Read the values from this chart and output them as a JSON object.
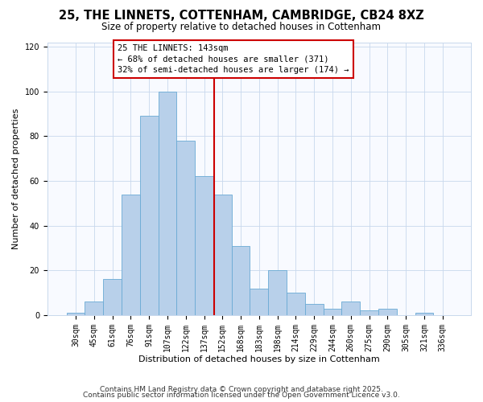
{
  "title": "25, THE LINNETS, COTTENHAM, CAMBRIDGE, CB24 8XZ",
  "subtitle": "Size of property relative to detached houses in Cottenham",
  "xlabel": "Distribution of detached houses by size in Cottenham",
  "ylabel": "Number of detached properties",
  "bar_labels": [
    "30sqm",
    "45sqm",
    "61sqm",
    "76sqm",
    "91sqm",
    "107sqm",
    "122sqm",
    "137sqm",
    "152sqm",
    "168sqm",
    "183sqm",
    "198sqm",
    "214sqm",
    "229sqm",
    "244sqm",
    "260sqm",
    "275sqm",
    "290sqm",
    "305sqm",
    "321sqm",
    "336sqm"
  ],
  "bar_values": [
    1,
    6,
    16,
    54,
    89,
    100,
    78,
    62,
    54,
    31,
    12,
    20,
    10,
    5,
    3,
    6,
    2,
    3,
    0,
    1,
    0
  ],
  "bar_color": "#b8d0ea",
  "bar_edge_color": "#6aaad4",
  "marker_index": 7.53,
  "marker_color": "#cc0000",
  "annotation_title": "25 THE LINNETS: 143sqm",
  "annotation_line1": "← 68% of detached houses are smaller (371)",
  "annotation_line2": "32% of semi-detached houses are larger (174) →",
  "annotation_box_color": "#cc0000",
  "ylim": [
    0,
    122
  ],
  "yticks": [
    0,
    20,
    40,
    60,
    80,
    100,
    120
  ],
  "footer1": "Contains HM Land Registry data © Crown copyright and database right 2025.",
  "footer2": "Contains public sector information licensed under the Open Government Licence v3.0.",
  "bg_color": "#ffffff",
  "plot_bg_color": "#f8faff",
  "grid_color": "#c8d8ec",
  "title_fontsize": 10.5,
  "subtitle_fontsize": 8.5,
  "axis_label_fontsize": 8,
  "tick_fontsize": 7,
  "annotation_fontsize": 7.5,
  "footer_fontsize": 6.5
}
